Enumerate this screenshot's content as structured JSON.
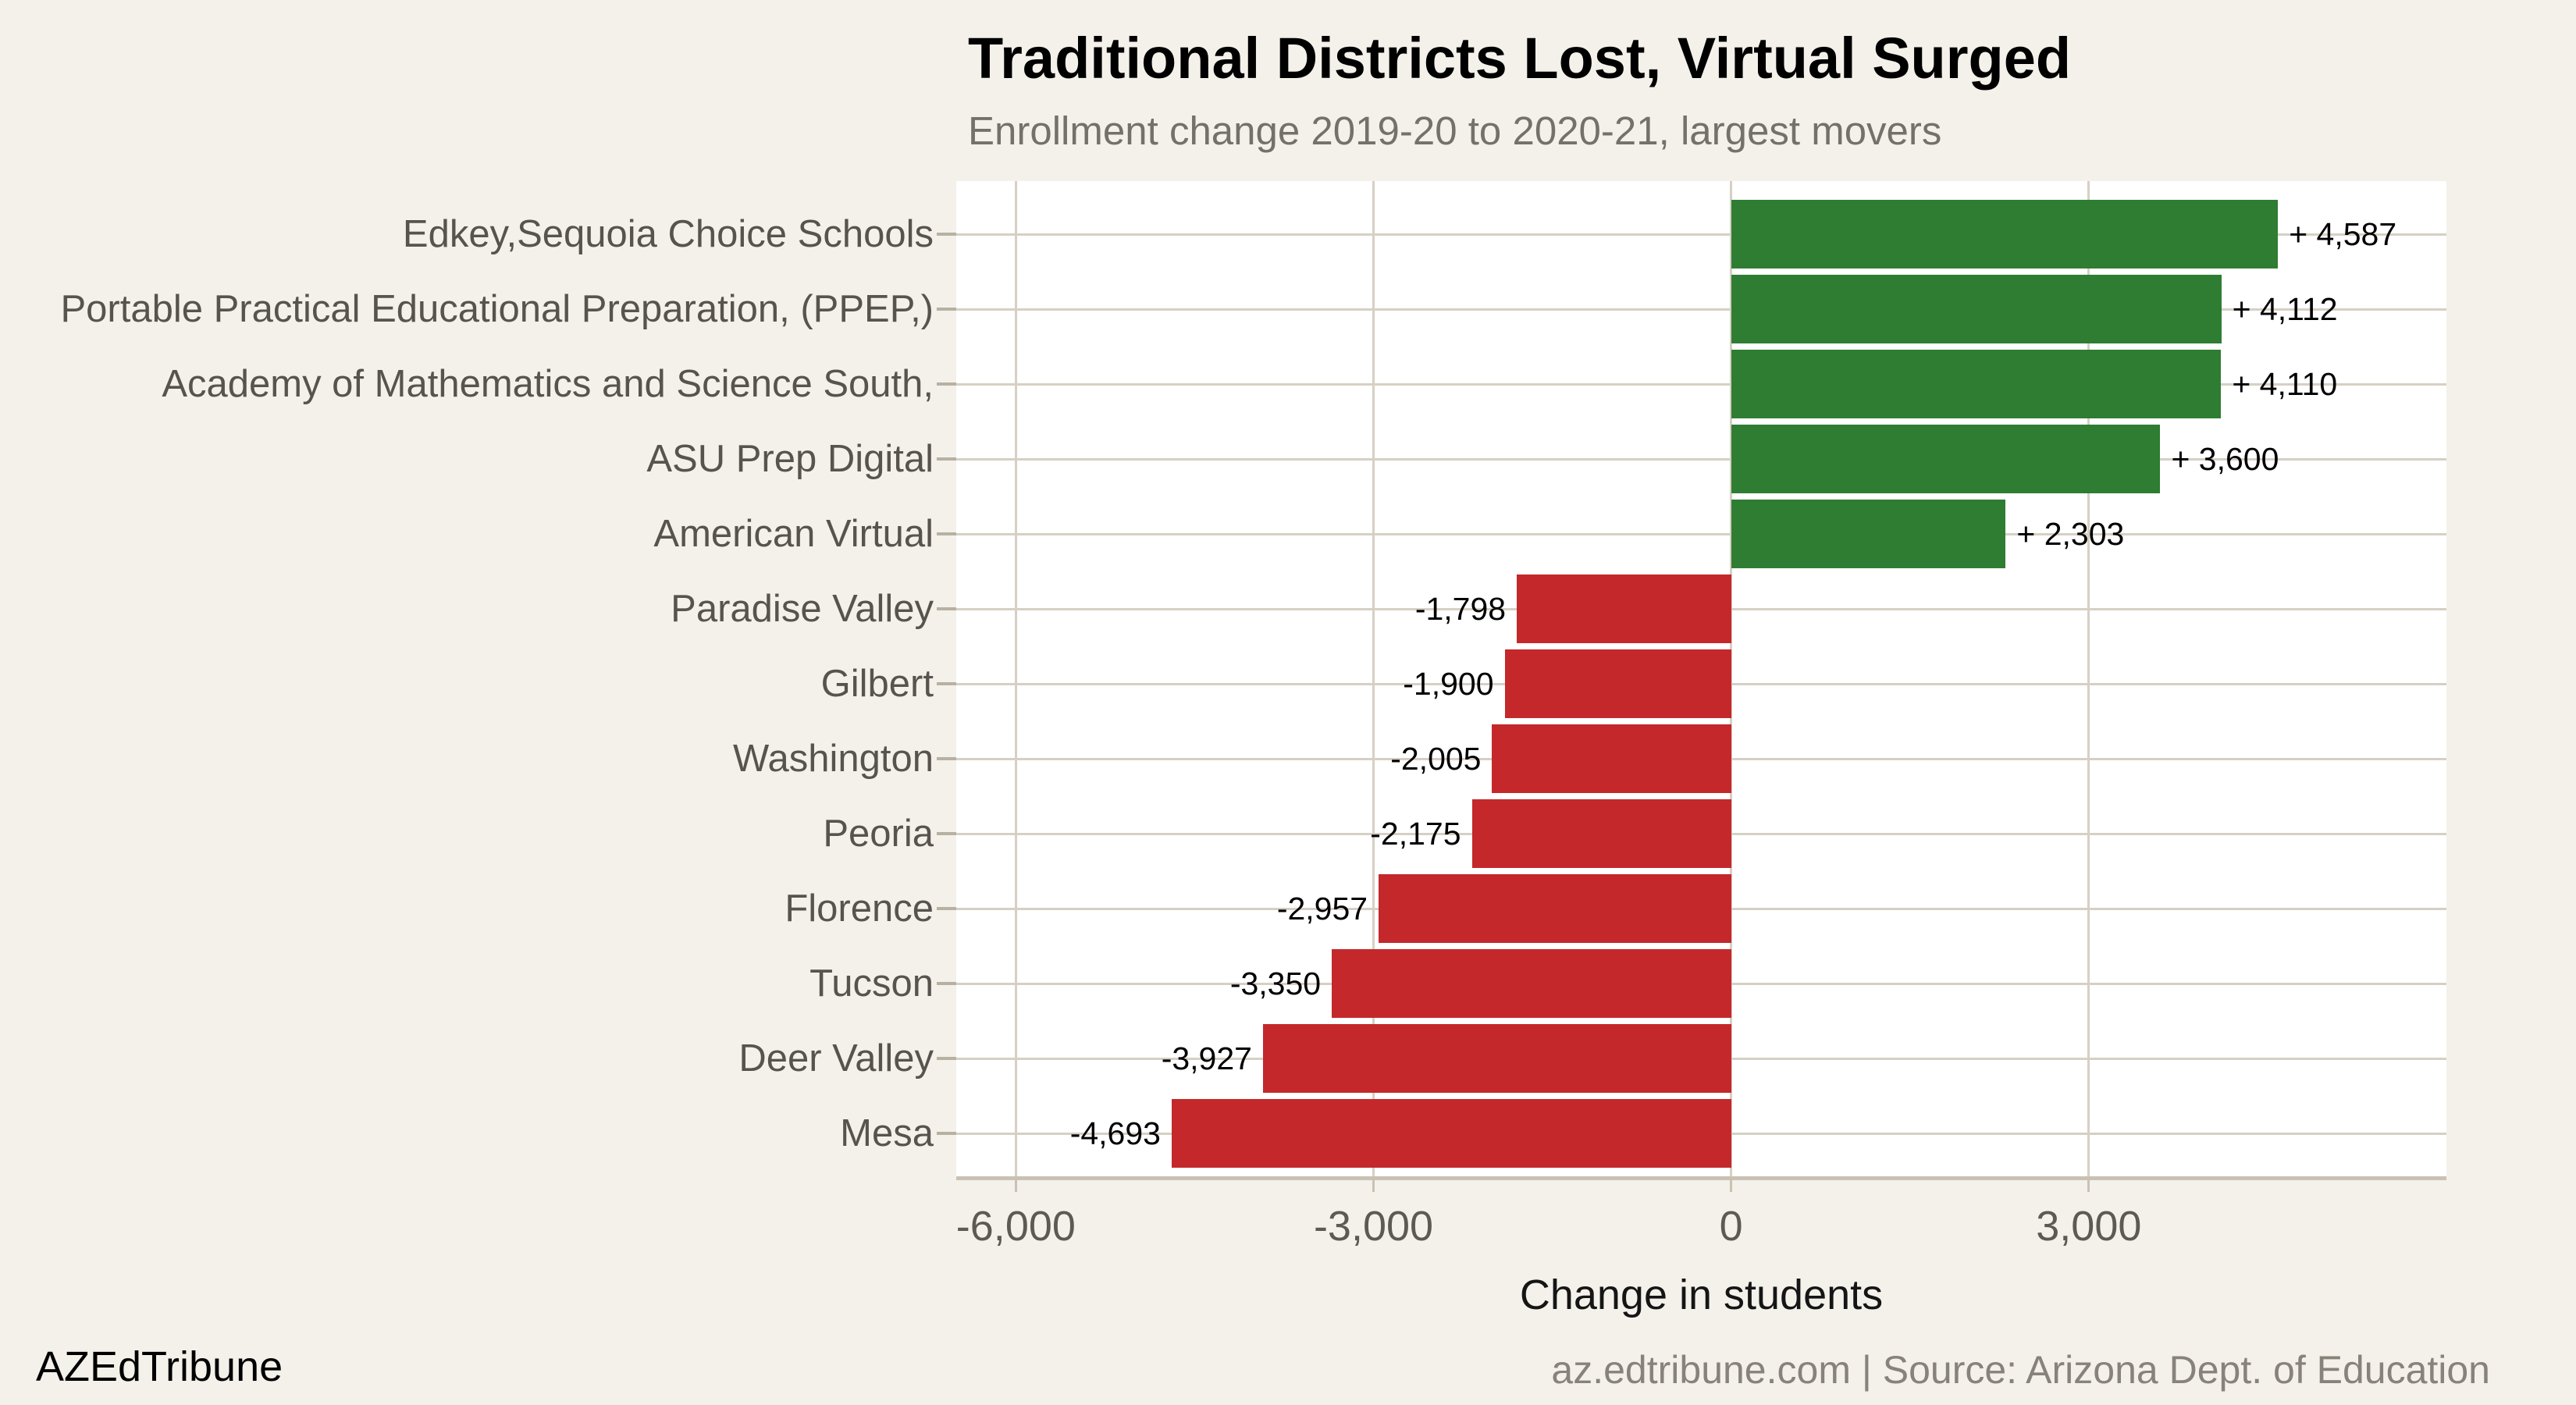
{
  "header": {
    "title": "Traditional Districts Lost, Virtual Surged",
    "subtitle": "Enrollment change 2019-20 to 2020-21, largest movers"
  },
  "chart_data": {
    "type": "bar",
    "orientation": "horizontal",
    "title": "Traditional Districts Lost, Virtual Surged",
    "subtitle": "Enrollment change 2019-20 to 2020-21, largest movers",
    "xlabel": "Change in students",
    "ylabel": "",
    "xlim": [
      -6500,
      6000
    ],
    "grid": true,
    "categories": [
      "Edkey,Sequoia Choice Schools",
      "Portable Practical Educational Preparation, (PPEP,)",
      "Academy of Mathematics and Science South,",
      "ASU Prep Digital",
      "American Virtual",
      "Paradise Valley",
      "Gilbert",
      "Washington",
      "Peoria",
      "Florence",
      "Tucson",
      "Deer Valley",
      "Mesa"
    ],
    "values": [
      4587,
      4112,
      4110,
      3600,
      2303,
      -1798,
      -1900,
      -2005,
      -2175,
      -2957,
      -3350,
      -3927,
      -4693
    ],
    "value_labels": [
      "+ 4,587",
      "+ 4,112",
      "+ 4,110",
      "+ 3,600",
      "+ 2,303",
      "-1,798",
      "-1,900",
      "-2,005",
      "-2,175",
      "-2,957",
      "-3,350",
      "-3,927",
      "-4,693"
    ],
    "x_ticks": [
      {
        "value": -6000,
        "label": "-6,000"
      },
      {
        "value": -3000,
        "label": "-3,000"
      },
      {
        "value": 0,
        "label": "0"
      },
      {
        "value": 3000,
        "label": "3,000"
      }
    ],
    "colors": {
      "positive_bar": "#2e7d32",
      "negative_bar": "#c4282b",
      "plot_background": "#ffffff",
      "page_background": "#f4f1ea",
      "gridline": "#d6d0c4",
      "axis_line": "#c9c2b4"
    }
  },
  "footer": {
    "brand": "AZEdTribune",
    "source": "az.edtribune.com | Source: Arizona Dept. of Education"
  }
}
